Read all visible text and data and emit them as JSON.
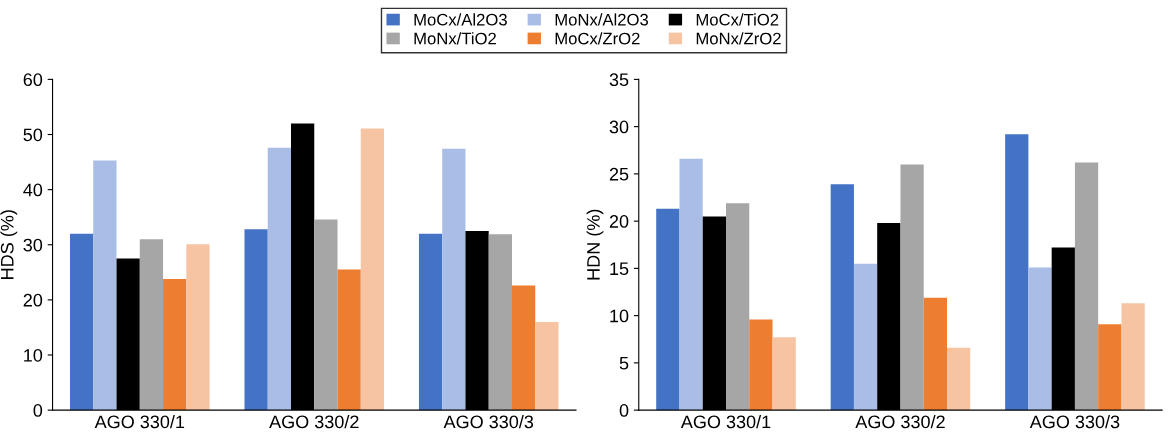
{
  "chart_data": [
    {
      "type": "bar",
      "ylabel": "HDS (%)",
      "categories": [
        "AGO 330/1",
        "AGO 330/2",
        "AGO 330/3"
      ],
      "ylim": [
        0,
        60
      ],
      "yticks": [
        0,
        10,
        20,
        30,
        40,
        50,
        60
      ],
      "legend": "top",
      "grid": false,
      "series": [
        {
          "name": "MoCx/Al2O3",
          "color": "#4472c4",
          "values": [
            32,
            32.8,
            32
          ]
        },
        {
          "name": "MoNx/Al2O3",
          "color": "#a9bde6",
          "values": [
            45.3,
            47.6,
            47.4
          ]
        },
        {
          "name": "MoCx/TiO2",
          "color": "#000000",
          "values": [
            27.5,
            52,
            32.5
          ]
        },
        {
          "name": "MoNx/TiO2",
          "color": "#a6a6a6",
          "values": [
            31,
            34.6,
            31.9
          ]
        },
        {
          "name": "MoCx/ZrO2",
          "color": "#ed7d31",
          "values": [
            23.8,
            25.5,
            22.6
          ]
        },
        {
          "name": "MoNx/ZrO2",
          "color": "#f6c4a2",
          "values": [
            30.1,
            51.1,
            16
          ]
        }
      ]
    },
    {
      "type": "bar",
      "ylabel": "HDN (%)",
      "categories": [
        "AGO 330/1",
        "AGO 330/2",
        "AGO 330/3"
      ],
      "ylim": [
        0,
        35
      ],
      "yticks": [
        0,
        5,
        10,
        15,
        20,
        25,
        30,
        35
      ],
      "grid": false,
      "series": [
        {
          "color": "#4472c4",
          "values": [
            21.3,
            23.9,
            29.2
          ]
        },
        {
          "color": "#a9bde6",
          "values": [
            26.6,
            15.5,
            15.1
          ]
        },
        {
          "color": "#000000",
          "values": [
            20.5,
            19.8,
            17.2
          ]
        },
        {
          "color": "#a6a6a6",
          "values": [
            21.9,
            26,
            26.2
          ]
        },
        {
          "color": "#ed7d31",
          "values": [
            9.6,
            11.9,
            9.1
          ]
        },
        {
          "color": "#f6c4a2",
          "values": [
            7.7,
            6.6,
            11.3
          ]
        }
      ]
    }
  ]
}
